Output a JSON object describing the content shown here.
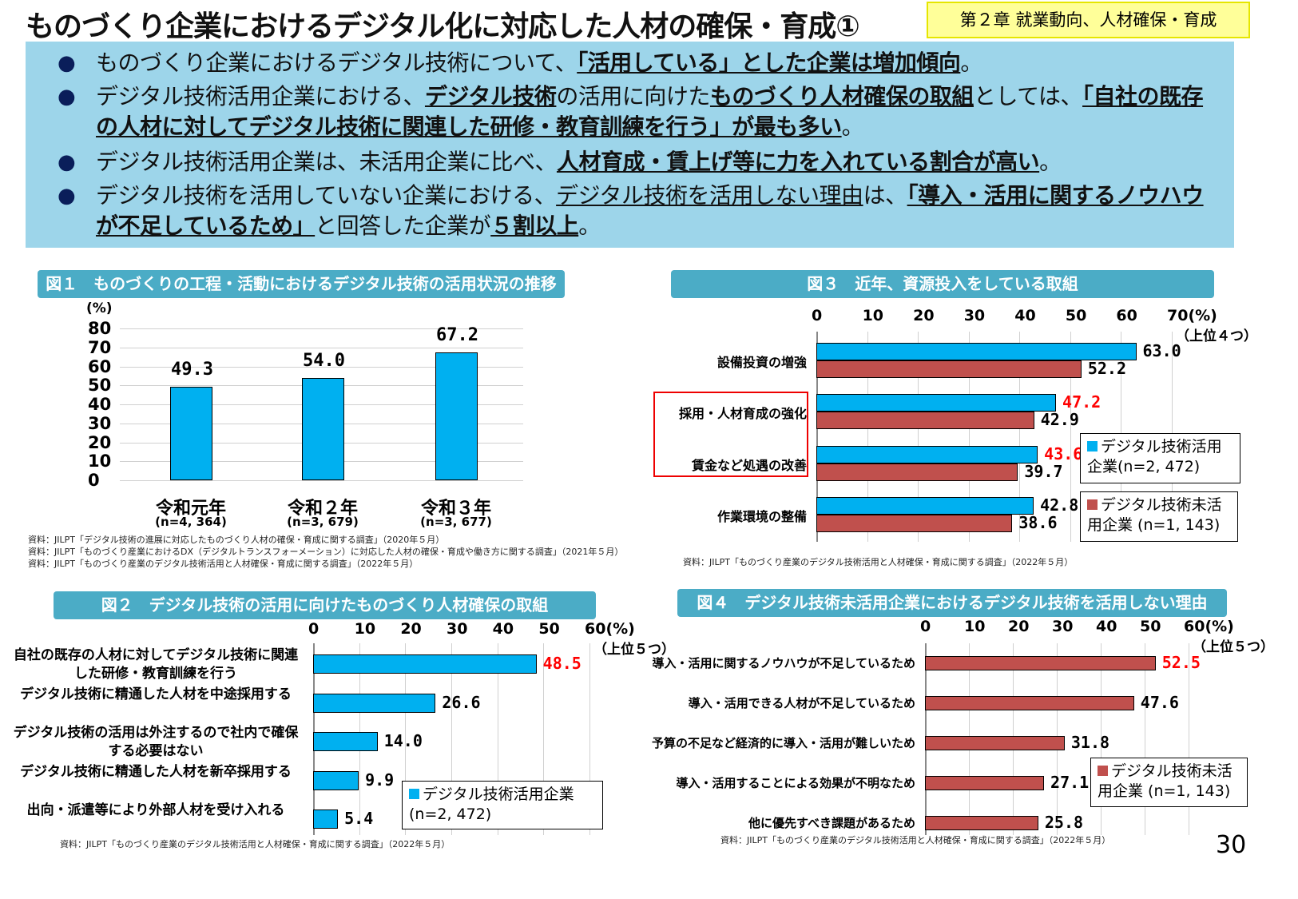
{
  "title": "ものづくり企業におけるデジタル化に対応した人材の確保・育成①",
  "chapter": "第２章  就業動向、人材確保・育成",
  "page_number": "30",
  "bullets": [
    [
      {
        "t": "ものづくり企業におけるデジタル技術について、",
        "s": ""
      },
      {
        "t": "「活用している」とした企業は増加傾向",
        "s": "bu"
      },
      {
        "t": "。",
        "s": ""
      }
    ],
    [
      {
        "t": "デジタル技術活用企業における、",
        "s": ""
      },
      {
        "t": "デジタル技術",
        "s": "bu"
      },
      {
        "t": "の活用に向けた",
        "s": ""
      },
      {
        "t": "ものづくり人材確保の取組",
        "s": "bu"
      },
      {
        "t": "としては、",
        "s": ""
      },
      {
        "t": "「自社の既存の人材に対してデジタル技術に関連した研修・教育訓練を行う」が最も多い",
        "s": "bu"
      },
      {
        "t": "。",
        "s": ""
      }
    ],
    [
      {
        "t": "デジタル技術活用企業は、未活用企業に比べ、",
        "s": ""
      },
      {
        "t": "人材育成・賃上げ等に力を入れている割合が高い",
        "s": "bu"
      },
      {
        "t": "。",
        "s": ""
      }
    ],
    [
      {
        "t": "デジタル技術を活用していない企業における、",
        "s": ""
      },
      {
        "t": "デジタル技術を活用しない理由",
        "s": "u"
      },
      {
        "t": "は、",
        "s": ""
      },
      {
        "t": "「導入・活用に関するノウハウが不足しているため」",
        "s": "bu"
      },
      {
        "t": "と回答した企業が",
        "s": ""
      },
      {
        "t": "５割以上",
        "s": "bu"
      },
      {
        "t": "。",
        "s": ""
      }
    ]
  ],
  "bullet_icon": "filled-circle",
  "colors": {
    "used": "#00b0f0",
    "unused": "#c0504d",
    "highlight": "#ff0000",
    "header": "#4bacc6",
    "summary_bg": "#9dd5ea"
  },
  "chart_data": [
    {
      "id": "fig1",
      "type": "bar",
      "title": "図１　ものづくりの工程・活動におけるデジタル技術の活用状況の推移",
      "ylabel": "(%)",
      "ylim": [
        0,
        80
      ],
      "yticks": [
        "80",
        "70",
        "60",
        "50",
        "40",
        "30",
        "20",
        "10",
        "0"
      ],
      "grid": true,
      "categories": [
        "令和元年",
        "令和２年",
        "令和３年"
      ],
      "category_notes": [
        "(n=4, 364)",
        "(n=3, 679)",
        "(n=3, 677)"
      ],
      "values": [
        49.3,
        54.0,
        67.2
      ],
      "value_labels": [
        "49.3",
        "54.0",
        "67.2"
      ],
      "sources": [
        "資料：JILPT「デジタル技術の進展に対応したものづくり人材の確保・育成に関する調査」（2020年５月）",
        "資料：JILPT「ものづくり産業におけるDX（デジタルトランスフォーメーション）に対応した人材の確保・育成や働き方に関する調査」（2021年５月）",
        "資料：JILPT「ものづくり産業のデジタル技術活用と人材確保・育成に関する調査」（2022年５月）"
      ]
    },
    {
      "id": "fig3",
      "type": "bar",
      "orientation": "horizontal",
      "title": "図３　近年、資源投入をしている取組",
      "xlim": [
        0,
        70
      ],
      "xticks": [
        "0",
        "10",
        "20",
        "30",
        "40",
        "50",
        "60",
        "70(%)"
      ],
      "note": "（上位４つ）",
      "grid": true,
      "categories": [
        "設備投資の増強",
        "採用・人材育成の強化",
        "賃金など処遇の改善",
        "作業環境の整備"
      ],
      "highlighted_categories": [
        "採用・人材育成の強化",
        "賃金など処遇の改善"
      ],
      "series": [
        {
          "name": "デジタル技術活用企業(n=2, 472)",
          "values": [
            63.0,
            47.2,
            43.6,
            42.8
          ],
          "labels": [
            "63.0",
            "47.2",
            "43.6",
            "42.8"
          ],
          "red_labels": [
            false,
            true,
            true,
            false
          ]
        },
        {
          "name": "デジタル技術未活用企業 (n=1, 143)",
          "values": [
            52.2,
            42.9,
            39.7,
            38.6
          ],
          "labels": [
            "52.2",
            "42.9",
            "39.7",
            "38.6"
          ],
          "red_labels": [
            false,
            false,
            false,
            false
          ]
        }
      ],
      "legend": [
        "デジタル技術活用企業(n=2, 472)",
        "デジタル技術未活用企業 (n=1, 143)"
      ],
      "sources": [
        "資料：JILPT「ものづくり産業のデジタル技術活用と人材確保・育成に関する調査」（2022年５月）"
      ]
    },
    {
      "id": "fig2",
      "type": "bar",
      "orientation": "horizontal",
      "title": "図２　デジタル技術の活用に向けたものづくり人材確保の取組",
      "xlim": [
        0,
        60
      ],
      "xticks": [
        "0",
        "10",
        "20",
        "30",
        "40",
        "50",
        "60(%)"
      ],
      "note": "（上位５つ）",
      "grid": true,
      "categories": [
        "自社の既存の人材に対してデジタル技術に関連した研修・教育訓練を行う",
        "デジタル技術に精通した人材を中途採用する",
        "デジタル技術の活用は外注するので社内で確保する必要はない",
        "デジタル技術に精通した人材を新卒採用する",
        "出向・派遣等により外部人材を受け入れる"
      ],
      "series": [
        {
          "name": "デジタル技術活用企業(n=2, 472)",
          "values": [
            48.5,
            26.6,
            14.0,
            9.9,
            5.4
          ],
          "labels": [
            "48.5",
            "26.6",
            "14.0",
            "9.9",
            "5.4"
          ],
          "red_labels": [
            true,
            false,
            false,
            false,
            false
          ]
        }
      ],
      "legend": [
        "デジタル技術活用企業(n=2, 472)"
      ],
      "sources": [
        "資料：JILPT「ものづくり産業のデジタル技術活用と人材確保・育成に関する調査」（2022年５月）"
      ]
    },
    {
      "id": "fig4",
      "type": "bar",
      "orientation": "horizontal",
      "title": "図４　デジタル技術未活用企業におけるデジタル技術を活用しない理由",
      "xlim": [
        0,
        60
      ],
      "xticks": [
        "0",
        "10",
        "20",
        "30",
        "40",
        "50",
        "60(%)"
      ],
      "note": "（上位５つ）",
      "grid": true,
      "categories": [
        "導入・活用に関するノウハウが不足しているため",
        "導入・活用できる人材が不足しているため",
        "予算の不足など経済的に導入・活用が難しいため",
        "導入・活用することによる効果が不明なため",
        "他に優先すべき課題があるため"
      ],
      "series": [
        {
          "name": "デジタル技術未活用企業 (n=1, 143)",
          "values": [
            52.5,
            47.6,
            31.8,
            27.1,
            25.8
          ],
          "labels": [
            "52.5",
            "47.6",
            "31.8",
            "27.1",
            "25.8"
          ],
          "red_labels": [
            true,
            false,
            false,
            false,
            false
          ]
        }
      ],
      "legend": [
        "デジタル技術未活用企業 (n=1, 143)"
      ],
      "sources": [
        "資料：JILPT「ものづくり産業のデジタル技術活用と人材確保・育成に関する調査」（2022年５月）"
      ]
    }
  ]
}
